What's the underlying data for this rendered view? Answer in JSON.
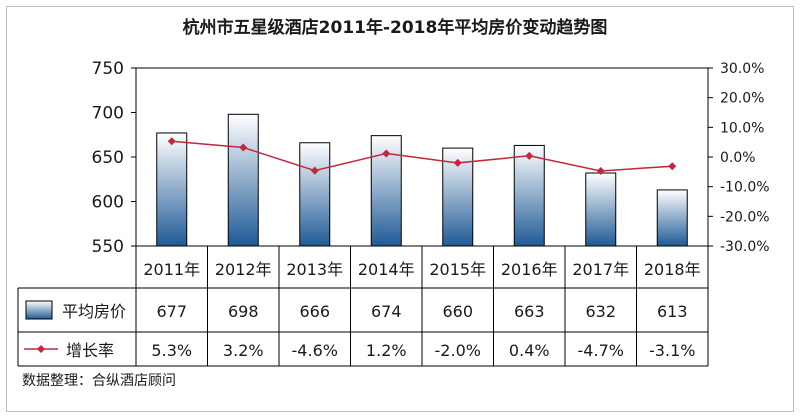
{
  "chart_data": {
    "type": "bar",
    "title": "杭州市五星级酒店2011年-2018年平均房价变动趋势图",
    "categories": [
      "2011年",
      "2012年",
      "2013年",
      "2014年",
      "2015年",
      "2016年",
      "2017年",
      "2018年"
    ],
    "series": [
      {
        "name": "平均房价",
        "type": "bar",
        "axis": "left",
        "values": [
          677,
          698,
          666,
          674,
          660,
          663,
          632,
          613
        ],
        "labels": [
          "677",
          "698",
          "666",
          "674",
          "660",
          "663",
          "632",
          "613"
        ]
      },
      {
        "name": "增长率",
        "type": "line",
        "axis": "right",
        "values": [
          5.3,
          3.2,
          -4.6,
          1.2,
          -2.0,
          0.4,
          -4.7,
          -3.1
        ],
        "labels": [
          "5.3%",
          "3.2%",
          "-4.6%",
          "1.2%",
          "-2.0%",
          "0.4%",
          "-4.7%",
          "-3.1%"
        ]
      }
    ],
    "y_left": {
      "ylim": [
        550,
        750
      ],
      "ticks": [
        "750",
        "700",
        "650",
        "600",
        "550"
      ]
    },
    "y_right": {
      "ylim": [
        -30,
        30
      ],
      "ticks": [
        "30.0%",
        "20.0%",
        "10.0%",
        "0.0%",
        "-10.0%",
        "-20.0%",
        "-30.0%"
      ]
    },
    "legend": "data-table",
    "grid": false,
    "colors": {
      "bar_top": "#ffffff",
      "bar_bottom": "#1f5a96",
      "line": "#c0283c",
      "marker": "#c0283c"
    }
  },
  "source_note": "数据整理：合纵酒店顾问"
}
